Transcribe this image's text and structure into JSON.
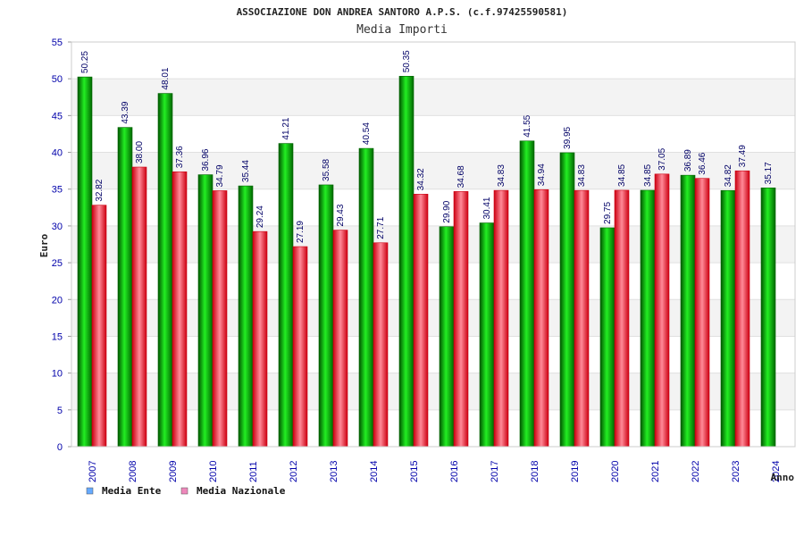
{
  "colors": {
    "ente": "#00aa00",
    "nazionale": "#ee2233",
    "legend_ente": "#66aaff",
    "legend_nazionale": "#ee88bb"
  },
  "chart_data": {
    "type": "bar",
    "title": "ASSOCIAZIONE DON ANDREA SANTORO A.P.S. (c.f.97425590581)",
    "subtitle": "Media Importi",
    "xlabel": "Anno",
    "ylabel": "Euro",
    "ylim": [
      0,
      55
    ],
    "yticks": [
      "0",
      "5",
      "10",
      "15",
      "20",
      "25",
      "30",
      "35",
      "40",
      "45",
      "50",
      "55"
    ],
    "categories": [
      "2007",
      "2008",
      "2009",
      "2010",
      "2011",
      "2012",
      "2013",
      "2014",
      "2015",
      "2016",
      "2017",
      "2018",
      "2019",
      "2020",
      "2021",
      "2022",
      "2023",
      "2024"
    ],
    "series": [
      {
        "name": "Media Ente",
        "values": [
          50.25,
          43.39,
          48.01,
          36.96,
          35.44,
          41.21,
          35.58,
          40.54,
          50.35,
          29.9,
          30.41,
          41.55,
          39.95,
          29.75,
          34.85,
          36.89,
          34.82,
          35.17
        ],
        "labels": [
          "50.25",
          "43.39",
          "48.01",
          "36.96",
          "35.44",
          "41.21",
          "35.58",
          "40.54",
          "50.35",
          "29.90",
          "30.41",
          "41.55",
          "39.95",
          "29.75",
          "34.85",
          "36.89",
          "34.82",
          "35.17"
        ]
      },
      {
        "name": "Media Nazionale",
        "values": [
          32.82,
          38.0,
          37.36,
          34.79,
          29.24,
          27.19,
          29.43,
          27.71,
          34.32,
          34.68,
          34.83,
          34.94,
          34.83,
          34.85,
          37.05,
          36.46,
          37.49,
          null
        ],
        "labels": [
          "32.82",
          "38.00",
          "37.36",
          "34.79",
          "29.24",
          "27.19",
          "29.43",
          "27.71",
          "34.32",
          "34.68",
          "34.83",
          "34.94",
          "34.83",
          "34.85",
          "37.05",
          "36.46",
          "37.49",
          null
        ]
      }
    ],
    "legend": [
      "Media Ente",
      "Media Nazionale"
    ],
    "legend_position": "bottom-left",
    "grid": true
  }
}
